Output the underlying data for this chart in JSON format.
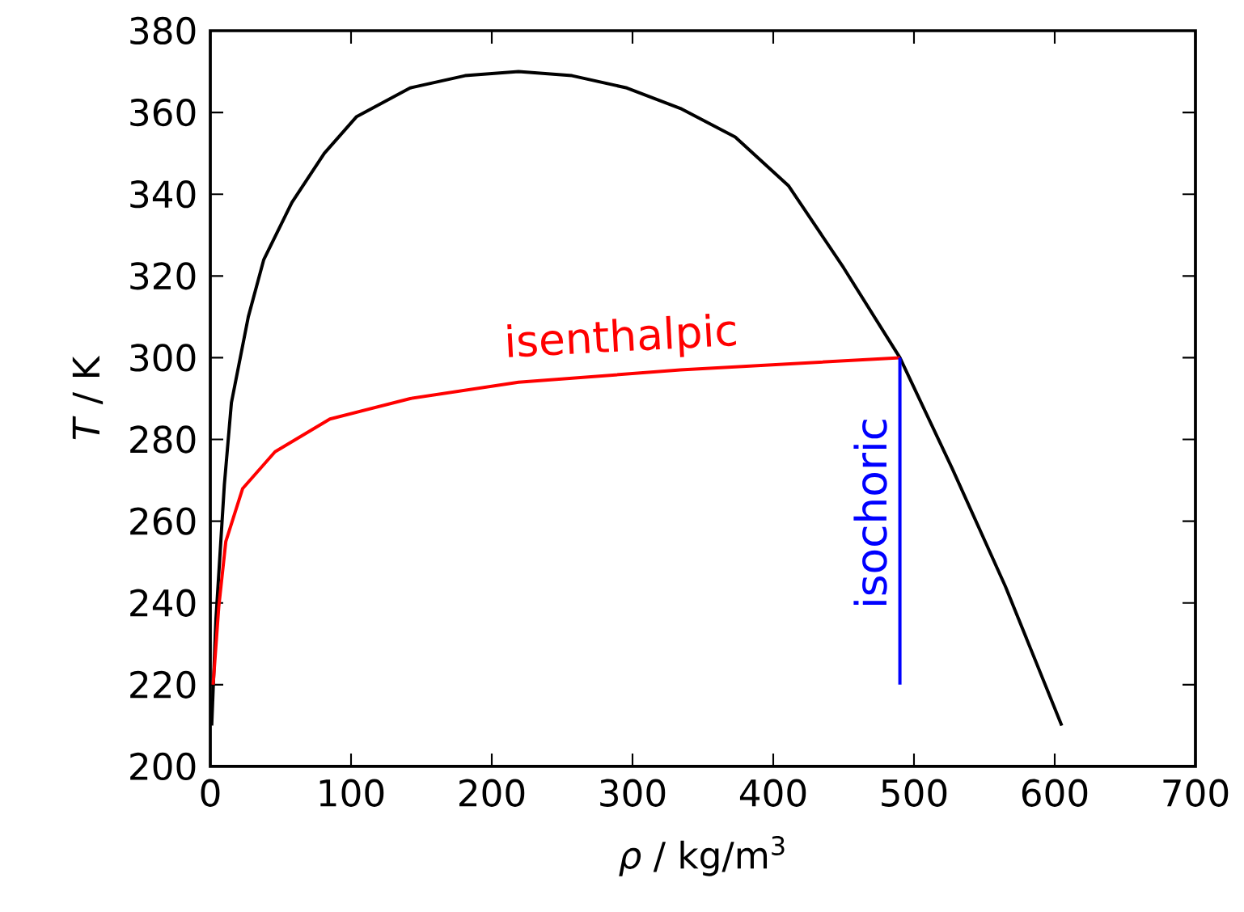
{
  "chart_data": {
    "type": "line",
    "xlabel": "*ρ* / kg/m$^{3}$",
    "ylabel": "*T* / K",
    "xlim": [
      0,
      700
    ],
    "ylim": [
      200,
      380
    ],
    "xticks": [
      0,
      100,
      200,
      300,
      400,
      500,
      600,
      700
    ],
    "yticks": [
      200,
      220,
      240,
      260,
      280,
      300,
      320,
      340,
      360,
      380
    ],
    "grid": false,
    "marker": "none",
    "line_style": "solid",
    "series": [
      {
        "color": "#000000",
        "x": [
          1,
          4,
          10,
          15,
          27,
          38,
          58,
          81,
          104,
          142,
          181,
          219,
          257,
          296,
          334,
          373,
          411,
          450,
          490,
          527,
          565,
          605
        ],
        "values": [
          210,
          236,
          269,
          289,
          310,
          324,
          338,
          350,
          359,
          366,
          369,
          370,
          369,
          366,
          361,
          354,
          342,
          322,
          300,
          273,
          244,
          210
        ]
      },
      {
        "color": "#ff0000",
        "x": [
          2,
          6,
          11,
          23,
          46,
          85,
          142,
          219,
          334,
          490
        ],
        "values": [
          220,
          239,
          255,
          268,
          277,
          285,
          290,
          294,
          297,
          300
        ]
      },
      {
        "color": "#0000ff",
        "x": [
          490,
          490
        ],
        "values": [
          220,
          300
        ]
      }
    ],
    "annotations": [
      "isenthalpic",
      "isochoric"
    ]
  }
}
